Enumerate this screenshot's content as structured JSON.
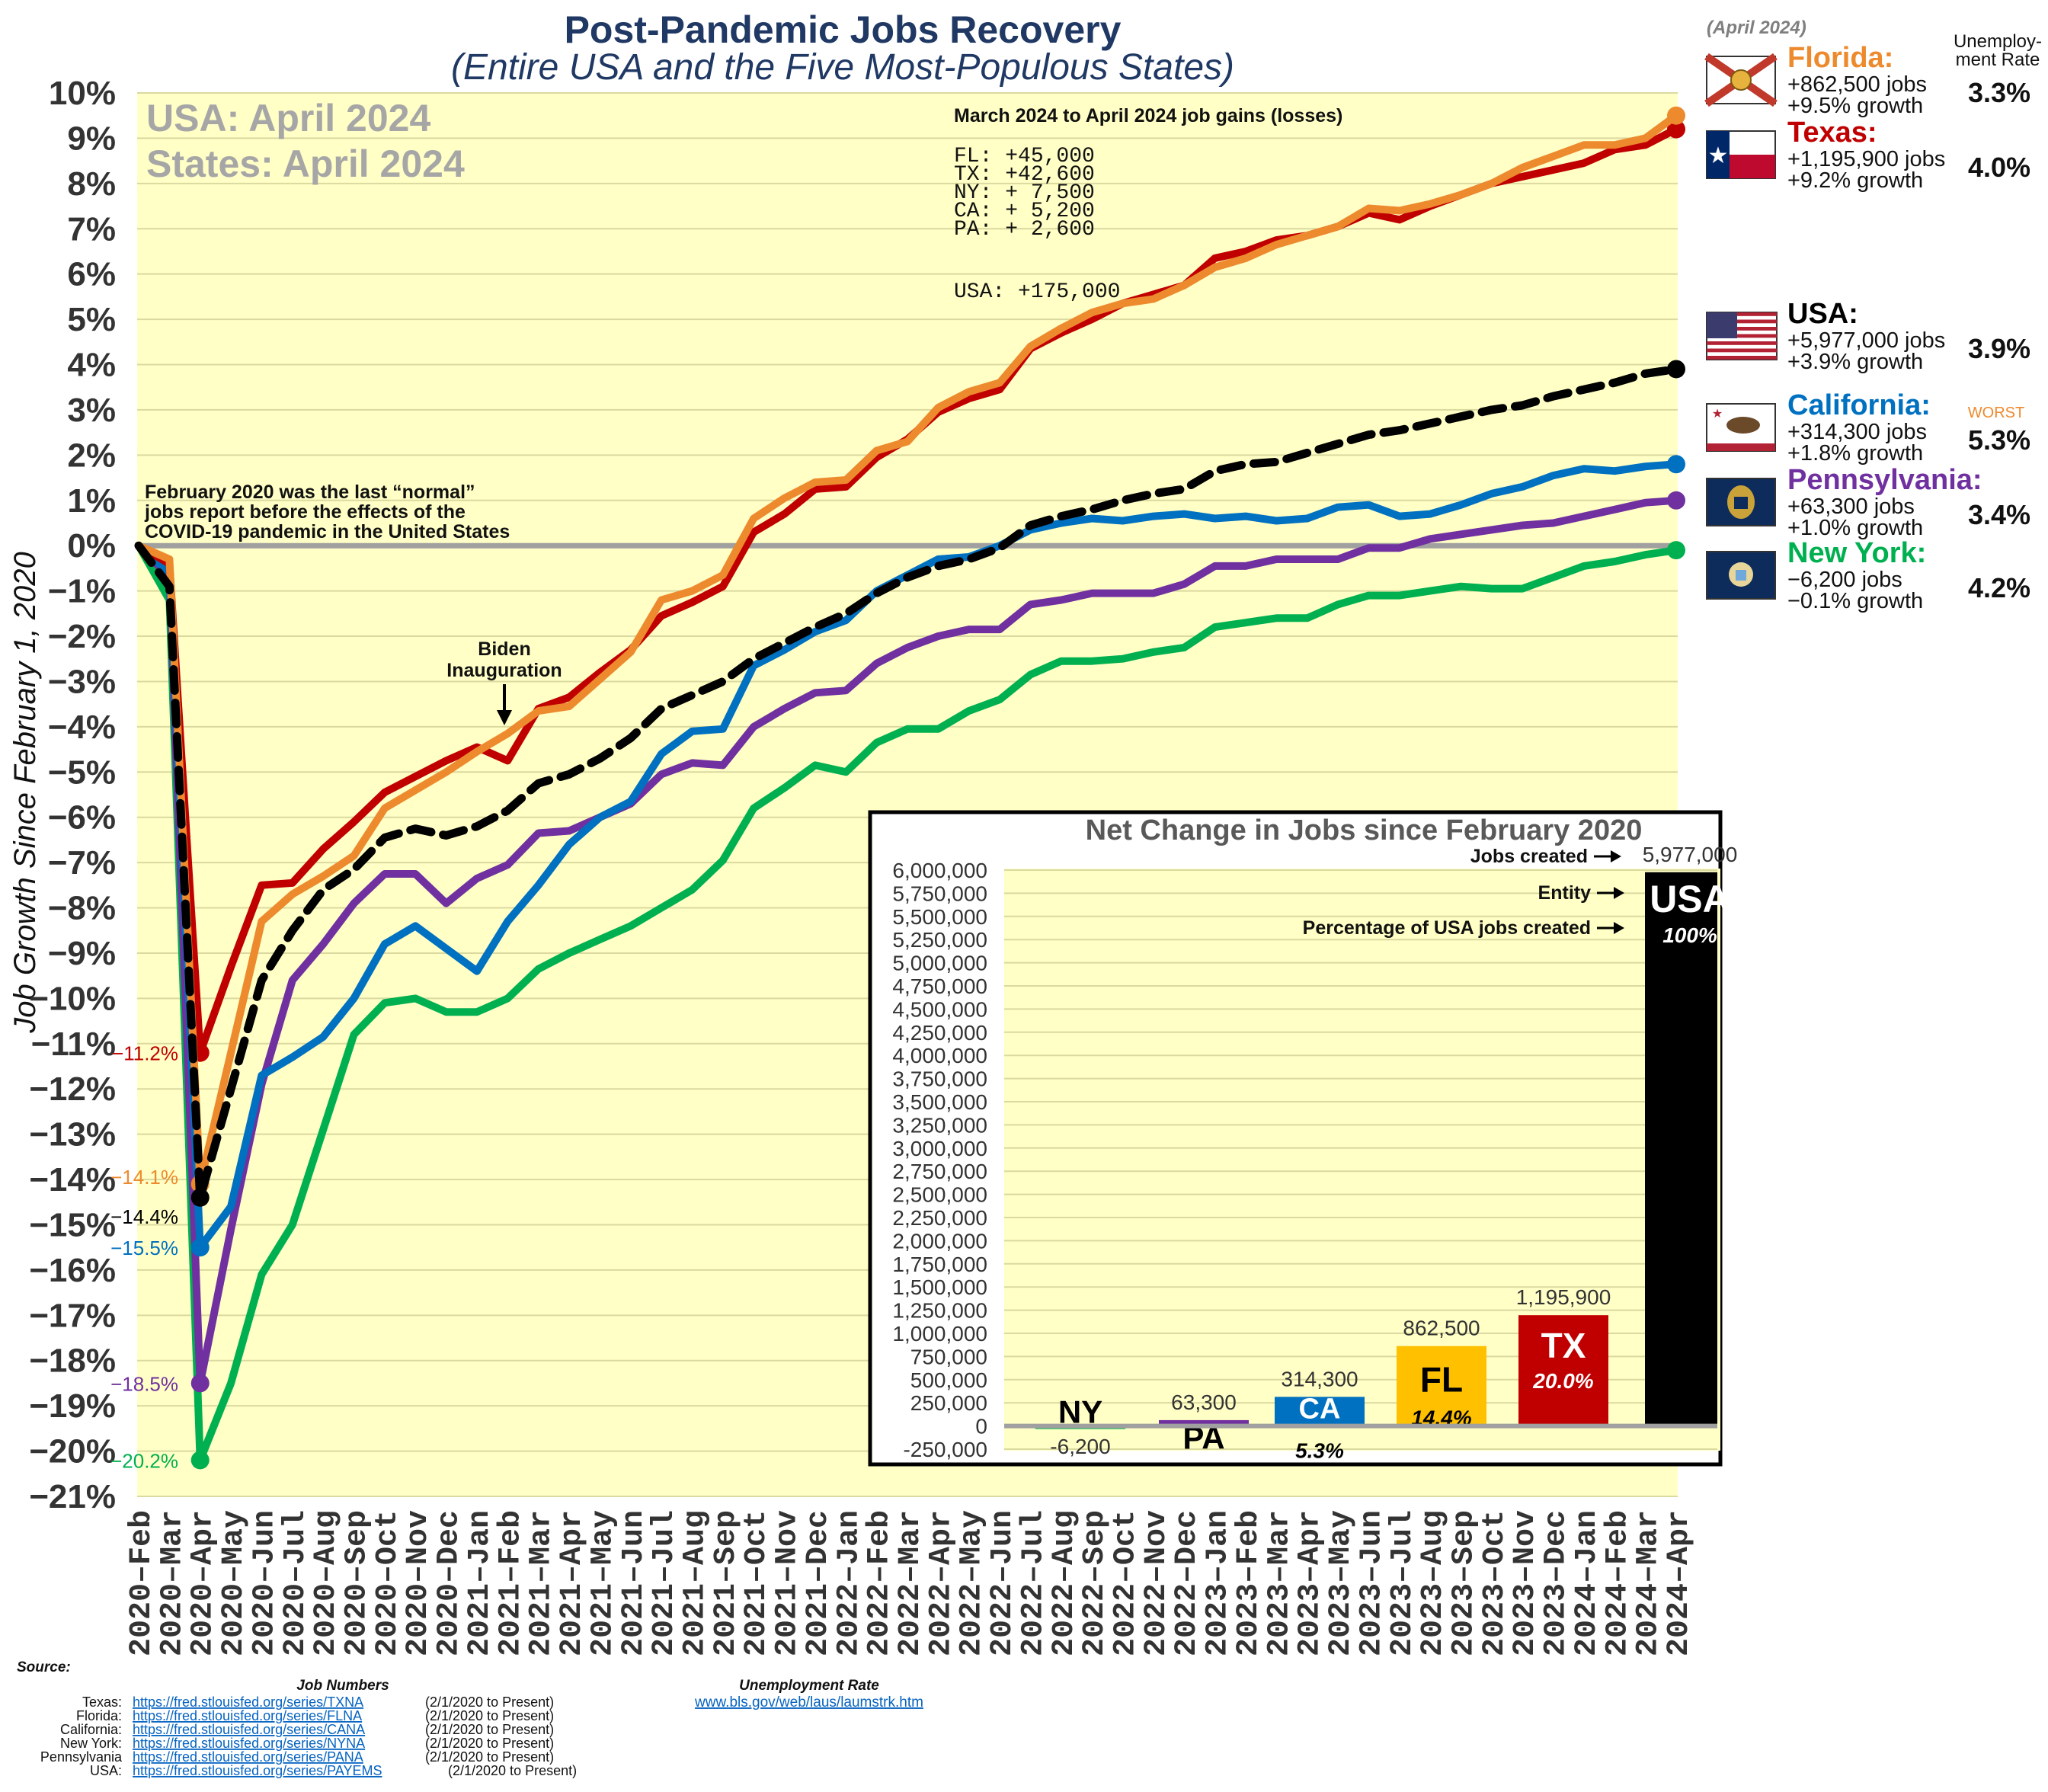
{
  "chart_data": {
    "type": "line",
    "title": "Post-Pandemic Jobs Recovery",
    "subtitle": "(Entire USA and the Five Most-Populous States)",
    "ylabel": "Job Growth Since February 1, 2020",
    "ylim": [
      -21,
      10
    ],
    "yticks": [
      "10%",
      "9%",
      "8%",
      "7%",
      "6%",
      "5%",
      "4%",
      "3%",
      "2%",
      "1%",
      "0%",
      "−1%",
      "−2%",
      "−3%",
      "−4%",
      "−5%",
      "−6%",
      "−7%",
      "−8%",
      "−9%",
      "−10%",
      "−11%",
      "−12%",
      "−13%",
      "−14%",
      "−15%",
      "−16%",
      "−17%",
      "−18%",
      "−19%",
      "−20%",
      "−21%"
    ],
    "grid": true,
    "x": [
      "2020–Feb",
      "2020–Mar",
      "2020–Apr",
      "2020–May",
      "2020–Jun",
      "2020–Jul",
      "2020–Aug",
      "2020–Sep",
      "2020–Oct",
      "2020–Nov",
      "2020–Dec",
      "2021–Jan",
      "2021–Feb",
      "2021–Mar",
      "2021–Apr",
      "2021–May",
      "2021–Jun",
      "2021–Jul",
      "2021–Aug",
      "2021–Sep",
      "2021–Oct",
      "2021–Nov",
      "2021–Dec",
      "2022–Jan",
      "2022–Feb",
      "2022–Mar",
      "2022–Apr",
      "2022–May",
      "2022–Jun",
      "2022–Jul",
      "2022–Aug",
      "2022–Sep",
      "2022–Oct",
      "2022–Nov",
      "2022–Dec",
      "2023–Jan",
      "2023–Feb",
      "2023–Mar",
      "2023–Apr",
      "2023–May",
      "2023–Jun",
      "2023–Jul",
      "2023–Aug",
      "2023–Sep",
      "2023–Oct",
      "2023–Nov",
      "2023–Dec",
      "2024–Jan",
      "2024–Feb",
      "2024–Mar",
      "2024–Apr"
    ],
    "series": [
      {
        "name": "Texas",
        "color": "#c00000",
        "values": [
          0,
          -0.4,
          -11.2,
          -9.3,
          -7.5,
          -7.45,
          -6.7,
          -6.1,
          -5.45,
          -5.1,
          -4.75,
          -4.45,
          -4.75,
          -3.6,
          -3.35,
          -2.8,
          -2.3,
          -1.55,
          -1.25,
          -0.9,
          0.3,
          0.7,
          1.25,
          1.3,
          1.95,
          2.35,
          2.95,
          3.25,
          3.45,
          4.35,
          4.7,
          5.0,
          5.35,
          5.55,
          5.75,
          6.35,
          6.5,
          6.75,
          6.85,
          7.05,
          7.35,
          7.2,
          7.5,
          7.75,
          8.0,
          8.15,
          8.3,
          8.45,
          8.75,
          8.85,
          9.2
        ]
      },
      {
        "name": "Florida",
        "color": "#ed8a2e",
        "values": [
          0,
          -0.3,
          -14.1,
          -11.2,
          -8.3,
          -7.7,
          -7.3,
          -6.85,
          -5.8,
          -5.4,
          -5.0,
          -4.55,
          -4.15,
          -3.65,
          -3.55,
          -2.95,
          -2.35,
          -1.2,
          -1.0,
          -0.65,
          0.6,
          1.05,
          1.4,
          1.45,
          2.1,
          2.3,
          3.05,
          3.4,
          3.6,
          4.4,
          4.8,
          5.15,
          5.35,
          5.45,
          5.75,
          6.15,
          6.35,
          6.65,
          6.85,
          7.05,
          7.45,
          7.4,
          7.55,
          7.75,
          8.0,
          8.35,
          8.6,
          8.85,
          8.85,
          9.0,
          9.5
        ]
      },
      {
        "name": "USA",
        "color": "#000000",
        "dashed": true,
        "values": [
          0,
          -0.9,
          -14.4,
          -12.0,
          -9.6,
          -8.5,
          -7.6,
          -7.15,
          -6.45,
          -6.25,
          -6.4,
          -6.2,
          -5.85,
          -5.25,
          -5.05,
          -4.7,
          -4.25,
          -3.6,
          -3.3,
          -3.0,
          -2.5,
          -2.15,
          -1.8,
          -1.5,
          -1.05,
          -0.7,
          -0.45,
          -0.3,
          -0.05,
          0.45,
          0.65,
          0.8,
          1.0,
          1.15,
          1.25,
          1.65,
          1.8,
          1.85,
          2.05,
          2.25,
          2.45,
          2.55,
          2.7,
          2.85,
          3.0,
          3.1,
          3.3,
          3.45,
          3.6,
          3.8,
          3.9
        ]
      },
      {
        "name": "California",
        "color": "#0070c0",
        "values": [
          0,
          -0.6,
          -15.5,
          -14.6,
          -11.7,
          -11.3,
          -10.85,
          -10.0,
          -8.8,
          -8.4,
          -8.9,
          -9.4,
          -8.3,
          -7.5,
          -6.6,
          -6.0,
          -5.65,
          -4.6,
          -4.1,
          -4.05,
          -2.65,
          -2.3,
          -1.9,
          -1.65,
          -1.0,
          -0.65,
          -0.3,
          -0.25,
          0.0,
          0.35,
          0.5,
          0.6,
          0.55,
          0.65,
          0.7,
          0.6,
          0.65,
          0.55,
          0.6,
          0.85,
          0.9,
          0.65,
          0.7,
          0.9,
          1.15,
          1.3,
          1.55,
          1.7,
          1.65,
          1.75,
          1.8
        ]
      },
      {
        "name": "Pennsylvania",
        "color": "#7030a0",
        "values": [
          0,
          -0.7,
          -18.5,
          -15.1,
          -11.9,
          -9.6,
          -8.8,
          -7.9,
          -7.25,
          -7.25,
          -7.9,
          -7.35,
          -7.05,
          -6.35,
          -6.3,
          -6.0,
          -5.7,
          -5.05,
          -4.8,
          -4.85,
          -4.0,
          -3.6,
          -3.25,
          -3.2,
          -2.6,
          -2.25,
          -2.0,
          -1.85,
          -1.85,
          -1.3,
          -1.2,
          -1.05,
          -1.05,
          -1.05,
          -0.85,
          -0.45,
          -0.45,
          -0.3,
          -0.3,
          -0.3,
          -0.05,
          -0.05,
          0.15,
          0.25,
          0.35,
          0.45,
          0.5,
          0.65,
          0.8,
          0.95,
          1.0
        ]
      },
      {
        "name": "New York",
        "color": "#00b050",
        "values": [
          0,
          -1.2,
          -20.2,
          -18.5,
          -16.1,
          -15.0,
          -12.9,
          -10.8,
          -10.1,
          -10.0,
          -10.3,
          -10.3,
          -10.0,
          -9.35,
          -9.0,
          -8.7,
          -8.4,
          -8.0,
          -7.6,
          -6.95,
          -5.8,
          -5.35,
          -4.85,
          -5.0,
          -4.35,
          -4.05,
          -4.05,
          -3.65,
          -3.4,
          -2.85,
          -2.55,
          -2.55,
          -2.5,
          -2.35,
          -2.25,
          -1.8,
          -1.7,
          -1.6,
          -1.6,
          -1.3,
          -1.1,
          -1.1,
          -1.0,
          -0.9,
          -0.95,
          -0.95,
          -0.7,
          -0.45,
          -0.35,
          -0.2,
          -0.1
        ]
      }
    ],
    "trough_labels": [
      {
        "series": "Texas",
        "text": "−11.2%",
        "color": "#c00000"
      },
      {
        "series": "Florida",
        "text": "−14.1%",
        "color": "#ed8a2e"
      },
      {
        "series": "USA",
        "text": "−14.4%",
        "color": "#000000"
      },
      {
        "series": "California",
        "text": "−15.5%",
        "color": "#0070c0"
      },
      {
        "series": "Pennsylvania",
        "text": "−18.5%",
        "color": "#7030a0"
      },
      {
        "series": "New York",
        "text": "−20.2%",
        "color": "#00b050"
      }
    ],
    "bar_inset": {
      "type": "bar",
      "title": "Net Change in Jobs since February 2020",
      "ylim": [
        -250000,
        6000000
      ],
      "yticks": [
        "6,000,000",
        "5,750,000",
        "5,500,000",
        "5,250,000",
        "5,000,000",
        "4,750,000",
        "4,500,000",
        "4,250,000",
        "4,000,000",
        "3,750,000",
        "3,500,000",
        "3,250,000",
        "3,000,000",
        "2,750,000",
        "2,500,000",
        "2,250,000",
        "2,000,000",
        "1,750,000",
        "1,500,000",
        "1,250,000",
        "1,000,000",
        "750,000",
        "500,000",
        "250,000",
        "0",
        "-250,000"
      ],
      "categories": [
        "NY",
        "PA",
        "CA",
        "FL",
        "TX",
        "USA"
      ],
      "values": [
        -6200,
        63300,
        314300,
        862500,
        1195900,
        5977000
      ],
      "value_labels": [
        "-6,200",
        "63,300",
        "314,300",
        "862,500",
        "1,195,900",
        "5,977,000"
      ],
      "pct_labels": [
        "",
        "",
        "5.3%",
        "14.4%",
        "20.0%",
        "100%"
      ],
      "colors": [
        "#00b050",
        "#7030a0",
        "#0070c0",
        "#ffc000",
        "#c00000",
        "#000000"
      ],
      "legend_notes": {
        "jobs_created": "Jobs created",
        "entity": "Entity",
        "pct": "Percentage of USA jobs created"
      }
    }
  },
  "date_box": {
    "usa": "USA: April 2024",
    "states": "States: April 2024"
  },
  "monthly_gains": {
    "title": "March 2024 to April 2024 job gains (losses)",
    "lines": [
      "FL: +45,000",
      "TX: +42,600",
      "NY: + 7,500",
      "CA: + 5,200",
      "PA: + 2,600"
    ],
    "usa": "USA: +175,000"
  },
  "annotations": {
    "feb2020": [
      "February 2020 was the last “normal”",
      "jobs report before the effects of the",
      "COVID-19 pandemic in the United States"
    ],
    "biden": [
      "Biden",
      "Inauguration"
    ]
  },
  "legend": {
    "date_note": "(April  2024)",
    "unemp_header": [
      "Unemploy-",
      "ment Rate"
    ],
    "worst": "WORST",
    "items": [
      {
        "name": "Florida:",
        "jobs": "+862,500 jobs",
        "growth": "+9.5% growth",
        "rate": "3.3%",
        "color": "#ed8a2e"
      },
      {
        "name": "Texas:",
        "jobs": "+1,195,900 jobs",
        "growth": "+9.2% growth",
        "rate": "4.0%",
        "color": "#c00000"
      },
      {
        "name": "USA:",
        "jobs": "+5,977,000 jobs",
        "growth": "+3.9% growth",
        "rate": "3.9%",
        "color": "#000000"
      },
      {
        "name": "California:",
        "jobs": "+314,300 jobs",
        "growth": "+1.8% growth",
        "rate": "5.3%",
        "color": "#0070c0"
      },
      {
        "name": "Pennsylvania:",
        "jobs": "+63,300 jobs",
        "growth": "+1.0% growth",
        "rate": "3.4%",
        "color": "#7030a0"
      },
      {
        "name": "New York:",
        "jobs": "−6,200 jobs",
        "growth": "−0.1% growth",
        "rate": "4.2%",
        "color": "#00b050"
      }
    ]
  },
  "sources": {
    "label": "Source:",
    "jobs_header": "Job Numbers",
    "unemp_header": "Unemployment Rate",
    "unemp_url": "www.bls.gov/web/laus/laumstrk.htm",
    "rows": [
      {
        "state": "Texas:",
        "url": "https://fred.stlouisfed.org/series/TXNA",
        "note": "(2/1/2020 to Present)"
      },
      {
        "state": "Florida:",
        "url": "https://fred.stlouisfed.org/series/FLNA",
        "note": "(2/1/2020 to Present)"
      },
      {
        "state": "California:",
        "url": "https://fred.stlouisfed.org/series/CANA",
        "note": "(2/1/2020 to Present)"
      },
      {
        "state": "New York:",
        "url": "https://fred.stlouisfed.org/series/NYNA",
        "note": "(2/1/2020 to Present)"
      },
      {
        "state": "Pennsylvania",
        "url": "https://fred.stlouisfed.org/series/PANA",
        "note": "(2/1/2020 to Present)"
      },
      {
        "state": "USA:",
        "url": "https://fred.stlouisfed.org/series/PAYEMS",
        "note": "(2/1/2020 to Present)"
      }
    ]
  }
}
